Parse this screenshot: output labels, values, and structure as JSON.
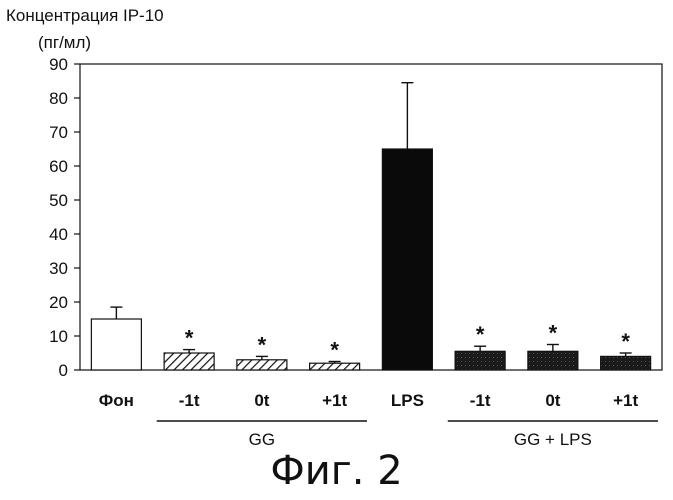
{
  "chart_data": {
    "type": "bar",
    "ylabel_line1": "Концентрация IP-10",
    "ylabel_line2": "(пг/мл)",
    "ylim": [
      0,
      90
    ],
    "yticks": [
      "0",
      "10",
      "20",
      "30",
      "40",
      "50",
      "60",
      "70",
      "80",
      "90"
    ],
    "categories": [
      "Фон",
      "-1t",
      "0t",
      "+1t",
      "LPS",
      "-1t",
      "0t",
      "+1t"
    ],
    "values": [
      15,
      5,
      3,
      2,
      65,
      5.5,
      5.5,
      4
    ],
    "errors": [
      3.5,
      1,
      1,
      0.5,
      19.5,
      1.5,
      2,
      1
    ],
    "significant": [
      "",
      "*",
      "*",
      "*",
      "",
      "*",
      "*",
      "*"
    ],
    "fills": [
      "white",
      "hatch",
      "hatch",
      "hatch",
      "black",
      "dark",
      "dark",
      "dark"
    ],
    "groups": [
      {
        "label": "GG",
        "start": 1,
        "end": 3
      },
      {
        "label": "GG + LPS",
        "start": 5,
        "end": 7
      }
    ],
    "grid": false
  },
  "figure_caption": "Фиг. 2"
}
